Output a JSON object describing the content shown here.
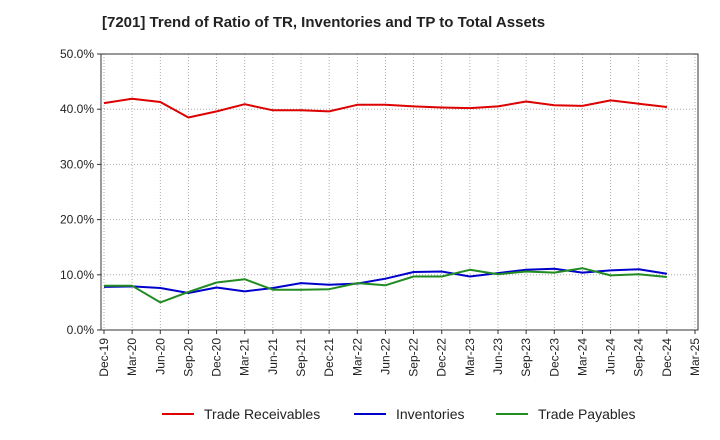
{
  "chart_data": {
    "type": "line",
    "title": "[7201]  Trend of Ratio of TR, Inventories and TP to Total Assets",
    "xlabel": "",
    "ylabel": "",
    "ylim": [
      0,
      50
    ],
    "y_ticks": [
      "0.0%",
      "10.0%",
      "20.0%",
      "30.0%",
      "40.0%",
      "50.0%"
    ],
    "categories": [
      "Dec-19",
      "Mar-20",
      "Jun-20",
      "Sep-20",
      "Dec-20",
      "Mar-21",
      "Jun-21",
      "Sep-21",
      "Dec-21",
      "Mar-22",
      "Jun-22",
      "Sep-22",
      "Dec-22",
      "Mar-23",
      "Jun-23",
      "Sep-23",
      "Dec-23",
      "Mar-24",
      "Jun-24",
      "Sep-24",
      "Dec-24",
      "Mar-25"
    ],
    "grid": true,
    "legend_position": "bottom",
    "series": [
      {
        "name": "Trade Receivables",
        "color": "#dd0000",
        "values": [
          41.1,
          41.9,
          41.3,
          38.5,
          39.6,
          40.9,
          39.8,
          39.8,
          39.6,
          40.8,
          40.8,
          40.5,
          40.3,
          40.2,
          40.5,
          41.4,
          40.7,
          40.6,
          41.6,
          41.0,
          40.4,
          null
        ]
      },
      {
        "name": "Inventories",
        "color": "#0000cc",
        "values": [
          7.8,
          7.9,
          7.6,
          6.7,
          7.7,
          7.0,
          7.6,
          8.5,
          8.2,
          8.4,
          9.3,
          10.5,
          10.6,
          9.7,
          10.3,
          10.9,
          11.1,
          10.4,
          10.8,
          11.0,
          10.2,
          null
        ]
      },
      {
        "name": "Trade Payables",
        "color": "#228b22",
        "values": [
          8.0,
          8.0,
          5.0,
          6.9,
          8.6,
          9.2,
          7.3,
          7.3,
          7.4,
          8.5,
          8.1,
          9.7,
          9.7,
          10.9,
          10.1,
          10.6,
          10.4,
          11.2,
          9.9,
          10.1,
          9.6,
          null
        ]
      }
    ]
  }
}
